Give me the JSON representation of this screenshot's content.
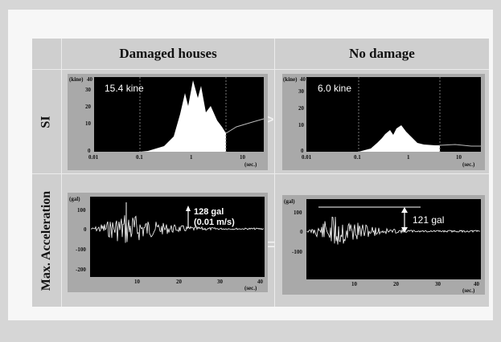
{
  "columns": {
    "damaged": "Damaged houses",
    "nodamage": "No damage"
  },
  "rows": {
    "si": "SI",
    "acc": "Max. Acceleration"
  },
  "comparison": {
    "si_symbol": ">",
    "acc_symbol": "="
  },
  "si_damaged": {
    "value_label": "15.4 kine",
    "unit_y": "(kine)",
    "unit_x": "(sec.)",
    "yticks": [
      "40",
      "30",
      "20",
      "10",
      "0"
    ],
    "xticks": [
      "0.01",
      "0.1",
      "1",
      "10"
    ]
  },
  "si_nodamage": {
    "value_label": "6.0 kine",
    "unit_y": "(kine)",
    "unit_x": "(sec.)",
    "yticks": [
      "40",
      "30",
      "20",
      "10",
      "0"
    ],
    "xticks": [
      "0.01",
      "0.1",
      "1",
      "10"
    ]
  },
  "acc_damaged": {
    "value_label": "128 gal",
    "sub_label": "(0.01 m/s)",
    "unit_y": "(gal)",
    "unit_x": "(sec.)",
    "yticks": [
      "100",
      "0",
      "-100",
      "-200"
    ],
    "xticks": [
      "10",
      "20",
      "30",
      "40"
    ]
  },
  "acc_nodamage": {
    "value_label": "121 gal",
    "unit_y": "(gal)",
    "unit_x": "(sec.)",
    "yticks": [
      "100",
      "0",
      "-100"
    ],
    "xticks": [
      "10",
      "20",
      "30",
      "40"
    ]
  },
  "colors": {
    "plot_bg": "#000000",
    "fill": "#ffffff",
    "panel": "#a9a9a9",
    "grid": "#cfcfcf"
  }
}
